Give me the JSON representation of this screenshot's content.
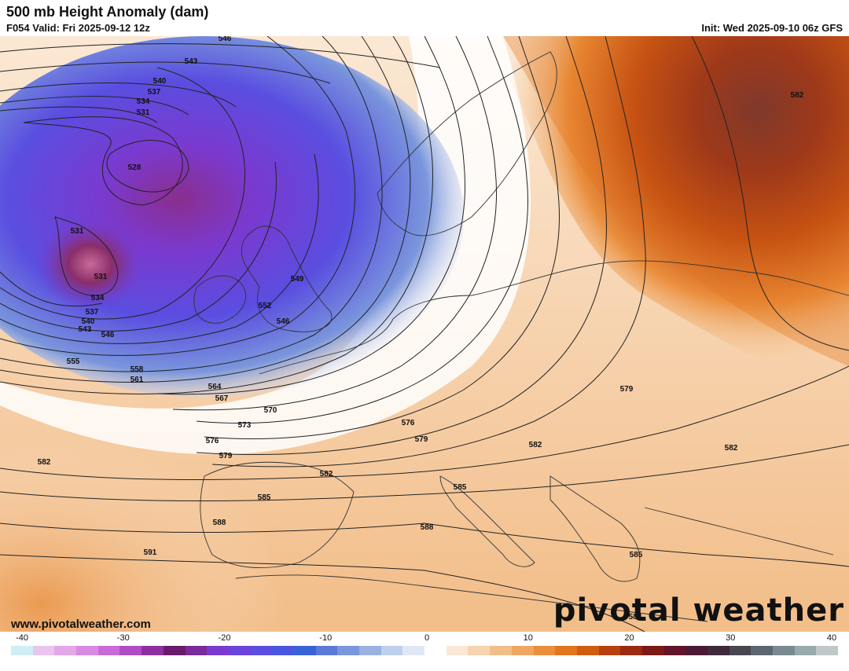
{
  "header": {
    "title": "500 mb Height Anomaly (dam)",
    "valid": "F054 Valid: Fri 2025-09-12 12z",
    "init": "Init: Wed 2025-09-10 06z GFS"
  },
  "footer": {
    "website": "www.pivotalweather.com",
    "logo_text": "pivotal weather"
  },
  "colorbar": {
    "ticks": [
      "-40",
      "-30",
      "-20",
      "-10",
      "0",
      "10",
      "20",
      "30",
      "40"
    ],
    "colors": [
      "#cfeef5",
      "#e9c4ef",
      "#e3a7ea",
      "#d98ae3",
      "#c96ad6",
      "#b04cc6",
      "#8d2f9e",
      "#6a1a6a",
      "#7a2a9a",
      "#7a3ad0",
      "#6a44dc",
      "#5a4ee0",
      "#4a56e0",
      "#3a62d8",
      "#5a7ad8",
      "#7a96dc",
      "#9ab2e2",
      "#bfd0ec",
      "#e0e8f6",
      "#ffffff",
      "#fbe8d4",
      "#f6d4b0",
      "#f2bd88",
      "#eea662",
      "#ea8e3c",
      "#e2761e",
      "#d05c12",
      "#b8400e",
      "#9a2a10",
      "#7c1a18",
      "#62142a",
      "#4a1a34",
      "#3e2a3a",
      "#4a4650",
      "#5c6670",
      "#7a8a90",
      "#9aaaac",
      "#c0c8c8"
    ]
  },
  "contour_labels": [
    "546",
    "543",
    "540",
    "537",
    "534",
    "531",
    "528",
    "531",
    "531",
    "534",
    "537",
    "540",
    "543",
    "546",
    "549",
    "552",
    "546",
    "555",
    "558",
    "561",
    "564",
    "567",
    "570",
    "573",
    "576",
    "579",
    "576",
    "579",
    "582",
    "582",
    "582",
    "585",
    "585",
    "588",
    "588",
    "591",
    "582",
    "579",
    "582",
    "585",
    "588"
  ],
  "anomaly_regions": {
    "negative_center_color": "#8a2e8e",
    "trough_color": "#6a44dc",
    "ridge_color": "#8a1a1a",
    "ridge_core_color": "#4a1a34",
    "neutral_color": "#ffffff"
  }
}
